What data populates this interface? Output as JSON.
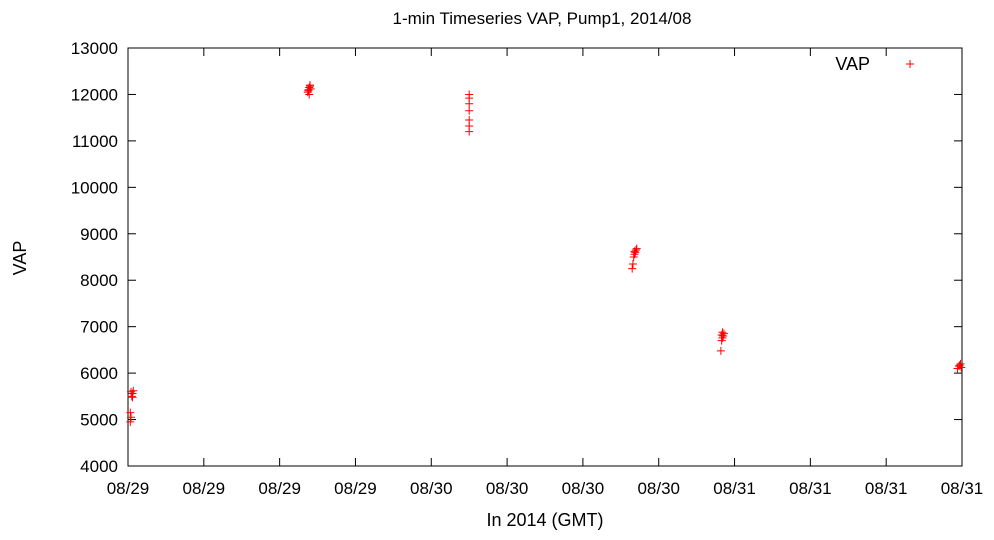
{
  "chart_data": {
    "type": "scatter",
    "title": "1-min Timeseries VAP, Pump1, 2014/08",
    "xlabel": "In 2014 (GMT)",
    "ylabel": "VAP",
    "ylim": [
      4000,
      13000
    ],
    "yticks": [
      4000,
      5000,
      6000,
      7000,
      8000,
      9000,
      10000,
      11000,
      12000,
      13000
    ],
    "xlim": [
      0,
      11
    ],
    "xticks": [
      0,
      1,
      2,
      3,
      4,
      5,
      6,
      7,
      8,
      9,
      10,
      11
    ],
    "xtick_labels": [
      "08/29",
      "08/29",
      "08/29",
      "08/29",
      "08/30",
      "08/30",
      "08/30",
      "08/30",
      "08/31",
      "08/31",
      "08/31",
      "08/31"
    ],
    "grid": false,
    "legend_position": "top-right",
    "colors": {
      "series": "#ff0000"
    },
    "series": [
      {
        "name": "VAP",
        "marker": "plus",
        "points": [
          {
            "x": 0.03,
            "y": 4950
          },
          {
            "x": 0.04,
            "y": 5050
          },
          {
            "x": 0.03,
            "y": 5150
          },
          {
            "x": 0.05,
            "y": 5500
          },
          {
            "x": 0.06,
            "y": 5560
          },
          {
            "x": 0.07,
            "y": 5620
          },
          {
            "x": 0.04,
            "y": 5600
          },
          {
            "x": 0.06,
            "y": 5480
          },
          {
            "x": 2.37,
            "y": 12050
          },
          {
            "x": 2.38,
            "y": 12100
          },
          {
            "x": 2.39,
            "y": 12150
          },
          {
            "x": 2.4,
            "y": 12200
          },
          {
            "x": 2.41,
            "y": 12120
          },
          {
            "x": 2.38,
            "y": 12080
          },
          {
            "x": 2.4,
            "y": 12180
          },
          {
            "x": 2.39,
            "y": 12000
          },
          {
            "x": 4.5,
            "y": 11200
          },
          {
            "x": 4.5,
            "y": 11320
          },
          {
            "x": 4.5,
            "y": 11450
          },
          {
            "x": 4.5,
            "y": 11650
          },
          {
            "x": 4.5,
            "y": 11800
          },
          {
            "x": 4.5,
            "y": 11920
          },
          {
            "x": 4.5,
            "y": 12000
          },
          {
            "x": 6.65,
            "y": 8250
          },
          {
            "x": 6.66,
            "y": 8350
          },
          {
            "x": 6.67,
            "y": 8500
          },
          {
            "x": 6.68,
            "y": 8560
          },
          {
            "x": 6.69,
            "y": 8600
          },
          {
            "x": 6.7,
            "y": 8650
          },
          {
            "x": 6.71,
            "y": 8680
          },
          {
            "x": 6.68,
            "y": 8620
          },
          {
            "x": 7.82,
            "y": 6480
          },
          {
            "x": 7.83,
            "y": 6700
          },
          {
            "x": 7.84,
            "y": 6760
          },
          {
            "x": 7.85,
            "y": 6800
          },
          {
            "x": 7.86,
            "y": 6850
          },
          {
            "x": 7.84,
            "y": 6880
          },
          {
            "x": 7.83,
            "y": 6820
          },
          {
            "x": 10.94,
            "y": 6100
          },
          {
            "x": 10.96,
            "y": 6150
          },
          {
            "x": 10.98,
            "y": 6200
          },
          {
            "x": 10.99,
            "y": 6120
          },
          {
            "x": 10.97,
            "y": 6170
          }
        ]
      }
    ]
  }
}
